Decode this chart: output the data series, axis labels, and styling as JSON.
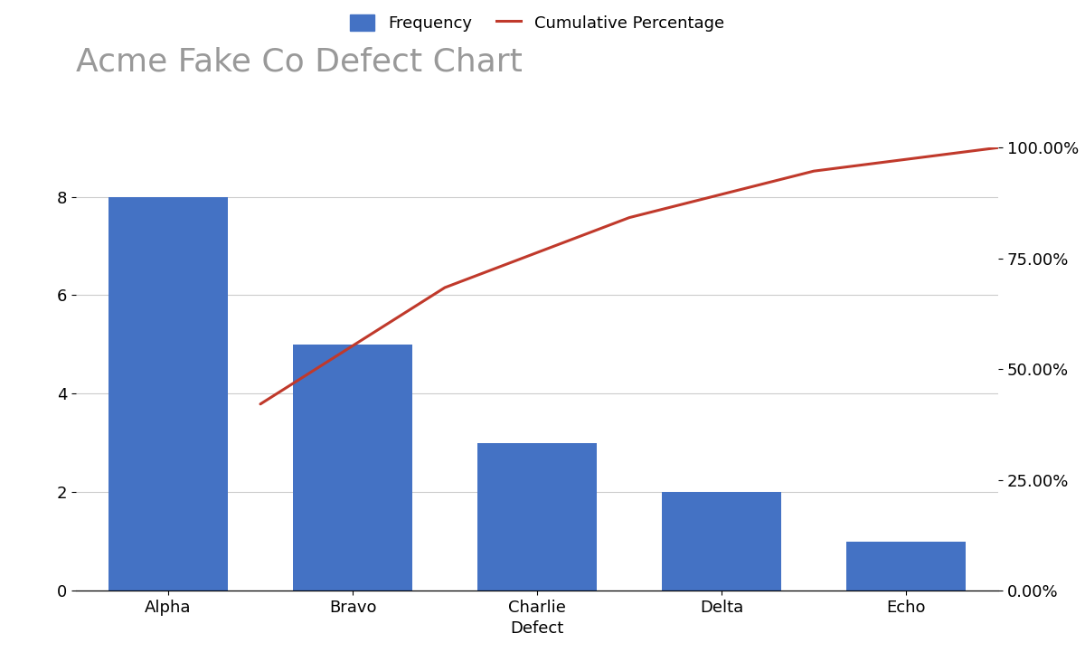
{
  "title": "Acme Fake Co Defect Chart",
  "categories": [
    "Alpha",
    "Bravo",
    "Charlie",
    "Delta",
    "Echo"
  ],
  "frequencies": [
    8,
    5,
    3,
    2,
    1
  ],
  "cumulative_pct": [
    0.421,
    0.684,
    0.842,
    0.947,
    1.0
  ],
  "bar_color": "#4472C4",
  "line_color": "#C0392B",
  "xlabel": "Defect",
  "ylim_left": [
    0,
    9
  ],
  "ylim_right": [
    0,
    1.0
  ],
  "yticks_left": [
    0,
    2,
    4,
    6,
    8
  ],
  "yticks_right": [
    0.0,
    0.25,
    0.5,
    0.75,
    1.0
  ],
  "ytick_right_labels": [
    "0.00%",
    "25.00%",
    "50.00%",
    "75.00%",
    "100.00%"
  ],
  "title_fontsize": 26,
  "title_color": "#999999",
  "legend_freq_label": "Frequency",
  "legend_cum_label": "Cumulative Percentage",
  "background_color": "#ffffff",
  "grid_color": "#cccccc",
  "bar_width": 0.65,
  "line_width": 2.2,
  "xlabel_fontsize": 13,
  "tick_fontsize": 13,
  "legend_fontsize": 13
}
